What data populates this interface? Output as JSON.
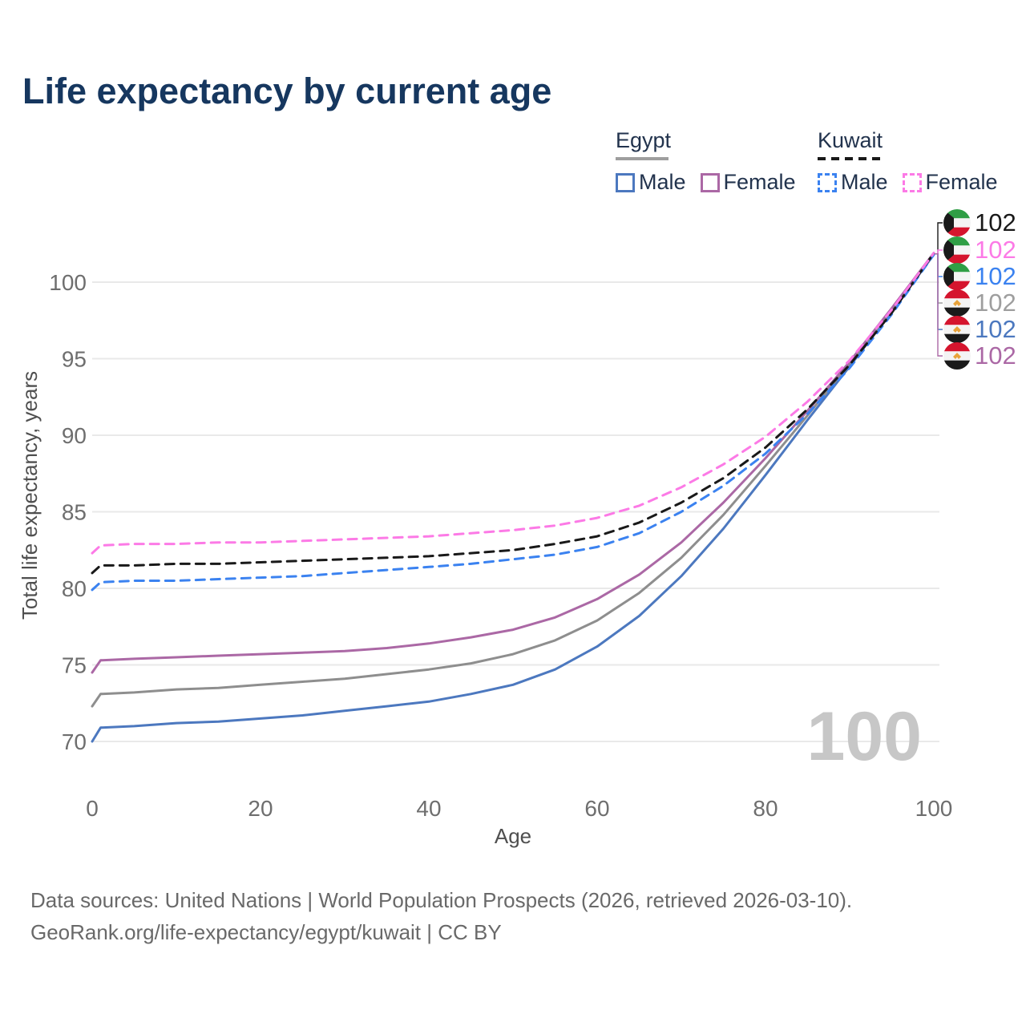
{
  "title": "Life expectancy by current age",
  "legend": {
    "groups": [
      {
        "label": "Egypt",
        "line_style": "solid",
        "underline_color": "#9e9e9e",
        "items": [
          {
            "label": "Male",
            "color": "#4c78bf",
            "dash": false
          },
          {
            "label": "Female",
            "color": "#ab68a5",
            "dash": false
          }
        ]
      },
      {
        "label": "Kuwait",
        "line_style": "dashed",
        "underline_color": "#191919",
        "items": [
          {
            "label": "Male",
            "color": "#3b82f0",
            "dash": true
          },
          {
            "label": "Female",
            "color": "#fc7ae6",
            "dash": true
          }
        ]
      }
    ]
  },
  "chart_data": {
    "type": "line",
    "title": "Life expectancy by current age",
    "xlabel": "Age",
    "ylabel": "Total life expectancy, years",
    "xlim": [
      0,
      100
    ],
    "ylim": [
      69.5,
      103
    ],
    "xticks": [
      0,
      20,
      40,
      60,
      80,
      100
    ],
    "yticks": [
      70,
      75,
      80,
      85,
      90,
      95,
      100
    ],
    "grid": "horizontal-only",
    "legend_position": "top-right",
    "watermark": "100",
    "x": [
      0,
      1,
      5,
      10,
      15,
      20,
      25,
      30,
      35,
      40,
      45,
      50,
      55,
      60,
      65,
      70,
      75,
      80,
      85,
      90,
      95,
      100
    ],
    "series": [
      {
        "key": "egypt-male",
        "name": "Egypt Male",
        "country": "Egypt",
        "sex": "Male",
        "color": "#4c78bf",
        "dash": false,
        "values": [
          70.0,
          70.9,
          71.0,
          71.2,
          71.3,
          71.5,
          71.7,
          72.0,
          72.3,
          72.6,
          73.1,
          73.7,
          74.7,
          76.2,
          78.2,
          80.8,
          83.9,
          87.4,
          91.0,
          94.5,
          98.1,
          101.8
        ]
      },
      {
        "key": "egypt-total",
        "name": "Egypt Total",
        "country": "Egypt",
        "sex": "Both",
        "color": "#8e8e8e",
        "dash": false,
        "values": [
          72.3,
          73.1,
          73.2,
          73.4,
          73.5,
          73.7,
          73.9,
          74.1,
          74.4,
          74.7,
          75.1,
          75.7,
          76.6,
          77.9,
          79.7,
          82.0,
          84.8,
          88.0,
          91.3,
          94.7,
          98.2,
          101.9
        ]
      },
      {
        "key": "egypt-female",
        "name": "Egypt Female",
        "country": "Egypt",
        "sex": "Female",
        "color": "#ab68a5",
        "dash": false,
        "values": [
          74.5,
          75.3,
          75.4,
          75.5,
          75.6,
          75.7,
          75.8,
          75.9,
          76.1,
          76.4,
          76.8,
          77.3,
          78.1,
          79.3,
          80.9,
          83.0,
          85.6,
          88.5,
          91.6,
          94.8,
          98.3,
          101.9
        ]
      },
      {
        "key": "kuwait-male",
        "name": "Kuwait Male",
        "country": "Kuwait",
        "sex": "Male",
        "color": "#3b82f0",
        "dash": true,
        "values": [
          79.9,
          80.4,
          80.5,
          80.5,
          80.6,
          80.7,
          80.8,
          81.0,
          81.2,
          81.4,
          81.6,
          81.9,
          82.2,
          82.7,
          83.6,
          85.0,
          86.7,
          88.8,
          91.4,
          94.4,
          97.9,
          101.8
        ]
      },
      {
        "key": "kuwait-total",
        "name": "Kuwait Total",
        "country": "Kuwait",
        "sex": "Both",
        "color": "#191919",
        "dash": true,
        "values": [
          81.0,
          81.5,
          81.5,
          81.6,
          81.6,
          81.7,
          81.8,
          81.9,
          82.0,
          82.1,
          82.3,
          82.5,
          82.9,
          83.4,
          84.3,
          85.6,
          87.2,
          89.2,
          91.7,
          94.6,
          98.0,
          101.9
        ]
      },
      {
        "key": "kuwait-female",
        "name": "Kuwait Female",
        "country": "Kuwait",
        "sex": "Female",
        "color": "#fc7ae6",
        "dash": true,
        "values": [
          82.3,
          82.8,
          82.9,
          82.9,
          83.0,
          83.0,
          83.1,
          83.2,
          83.3,
          83.4,
          83.6,
          83.8,
          84.1,
          84.6,
          85.4,
          86.6,
          88.1,
          89.9,
          92.2,
          94.9,
          98.2,
          101.9
        ]
      }
    ],
    "end_labels": [
      {
        "flag": "kuwait",
        "series": "kuwait-total",
        "value": "102",
        "color": "#191919"
      },
      {
        "flag": "kuwait",
        "series": "kuwait-female",
        "value": "102",
        "color": "#fc7ae6"
      },
      {
        "flag": "kuwait",
        "series": "kuwait-male",
        "value": "102",
        "color": "#3b82f0"
      },
      {
        "flag": "egypt",
        "series": "egypt-total",
        "value": "102",
        "color": "#9e9e9e"
      },
      {
        "flag": "egypt",
        "series": "egypt-male",
        "value": "102",
        "color": "#4c78bf"
      },
      {
        "flag": "egypt",
        "series": "egypt-female",
        "value": "102",
        "color": "#ab68a5"
      }
    ],
    "flag_colors": {
      "kuwait_green": "#2f9e45",
      "kuwait_white": "#f4f4f4",
      "kuwait_red": "#d5152e",
      "kuwait_black": "#1a1a1a",
      "egypt_red": "#d5152e",
      "egypt_white": "#f4f4f4",
      "egypt_black": "#1a1a1a",
      "egypt_gold": "#e8a33b"
    },
    "axis_color": "#6e6e6e",
    "grid_color": "#e9e9e9",
    "watermark_color": "#c7c7c7"
  },
  "footer": {
    "line1": "Data sources: United Nations | World Population Prospects (2026, retrieved 2026-03-10).",
    "line2": "GeoRank.org/life-expectancy/egypt/kuwait | CC BY"
  }
}
